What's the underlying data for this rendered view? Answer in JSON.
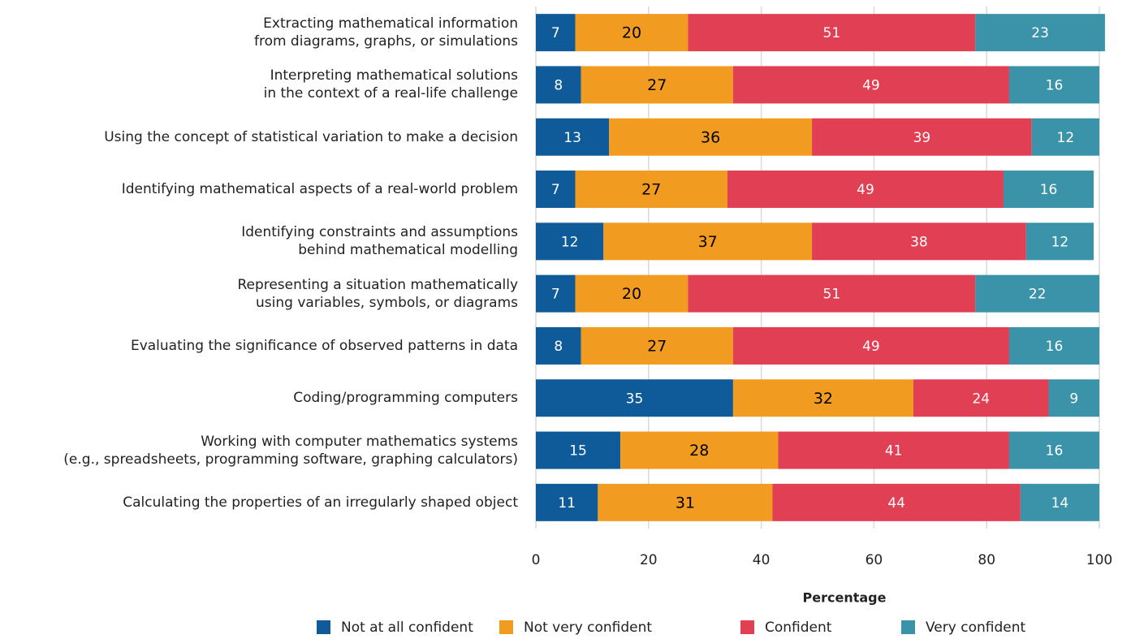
{
  "chart_data": {
    "type": "stacked-barh",
    "x_label": "Percentage",
    "categories": [
      "Extracting mathematical information\nfrom diagrams, graphs, or simulations",
      "Interpreting mathematical solutions\nin the context of a real-life challenge",
      "Using the concept of statistical variation to make a decision",
      "Identifying mathematical aspects of a real-world problem",
      "Identifying constraints and assumptions\nbehind mathematical modelling",
      "Representing a situation mathematically\nusing variables, symbols, or diagrams",
      "Evaluating the significance of observed patterns in data",
      "Coding/programming computers",
      "Working with computer mathematics systems\n(e.g., spreadsheets, programming software, graphing calculators)",
      "Calculating the properties of an irregularly shaped object"
    ],
    "series": [
      {
        "name": "Not at all confident",
        "color": "#0f5a99",
        "values": [
          7,
          8,
          13,
          7,
          12,
          7,
          8,
          35,
          15,
          11
        ]
      },
      {
        "name": "Not very confident",
        "color": "#f29b21",
        "values": [
          20,
          27,
          36,
          27,
          37,
          20,
          27,
          32,
          28,
          31
        ]
      },
      {
        "name": "Confident",
        "color": "#e13f53",
        "values": [
          51,
          49,
          39,
          49,
          38,
          51,
          49,
          24,
          41,
          44
        ]
      },
      {
        "name": "Very confident",
        "color": "#3a93a9",
        "values": [
          23,
          16,
          12,
          16,
          12,
          22,
          16,
          9,
          16,
          14
        ]
      }
    ],
    "xlim": [
      0,
      100
    ],
    "xticks": [
      0,
      20,
      40,
      60,
      80,
      100
    ],
    "grid": true,
    "legend": "bottom"
  }
}
